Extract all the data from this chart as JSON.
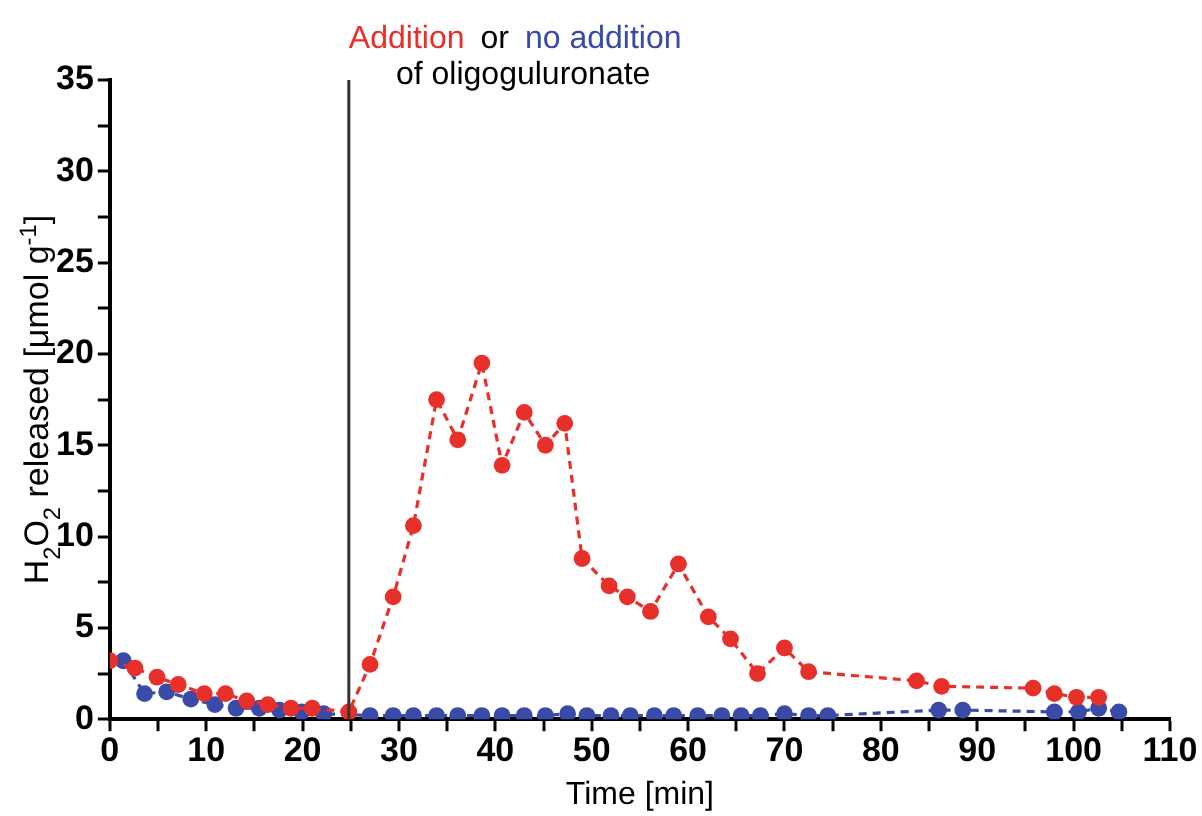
{
  "chart_data": {
    "type": "line",
    "xlabel": "Time [min]",
    "ylabel": "H$_{2}$O$_{2}$ released [μmol g$^{-1}$]",
    "xlim": [
      0,
      110
    ],
    "ylim": [
      0,
      35
    ],
    "xticks": [
      0,
      {
        "value": 5,
        "label": null
      },
      10,
      {
        "value": 15,
        "label": null
      },
      20,
      {
        "value": 25,
        "label": null
      },
      30,
      {
        "value": 35,
        "label": null
      },
      40,
      {
        "value": 45,
        "label": null
      },
      50,
      {
        "value": 55,
        "label": null
      },
      60,
      {
        "value": 65,
        "label": null
      },
      70,
      {
        "value": 75,
        "label": null
      },
      80,
      {
        "value": 85,
        "label": null
      },
      90,
      {
        "value": 95,
        "label": null
      },
      100,
      {
        "value": 105,
        "label": null
      },
      110
    ],
    "yticks": [
      0,
      {
        "value": 2.5,
        "label": null
      },
      5,
      {
        "value": 7.5,
        "label": null
      },
      10,
      {
        "value": 12.5,
        "label": null
      },
      15,
      {
        "value": 17.5,
        "label": null
      },
      20,
      {
        "value": 22.5,
        "label": null
      },
      25,
      {
        "value": 27.5,
        "label": null
      },
      30,
      {
        "value": 32.5,
        "label": null
      },
      35
    ],
    "grid": false,
    "legend": "top",
    "marker": "circle",
    "line_style": "dashed",
    "ref_lines": [
      {
        "axis": "x",
        "value": 24.8,
        "color": "#333333"
      }
    ],
    "annotations": [
      "or",
      "of oligoguluronate"
    ],
    "series": [
      {
        "name": "Addition",
        "color": "#e8302a",
        "x": [
          0,
          2.6,
          4.9,
          7.1,
          9.8,
          12,
          14.2,
          16.4,
          18.8,
          21,
          24.8,
          27,
          29.4,
          31.5,
          33.9,
          36.1,
          38.6,
          40.7,
          43,
          45.2,
          47.2,
          49,
          51.8,
          53.7,
          56.1,
          59,
          62.1,
          64.4,
          67.2,
          70,
          72.5,
          83.7,
          86.3,
          95.8,
          98,
          100.3,
          102.6
        ],
        "values": [
          3.2,
          2.8,
          2.3,
          1.9,
          1.4,
          1.4,
          1,
          0.8,
          0.6,
          0.6,
          0.4,
          3,
          6.7,
          10.6,
          17.5,
          15.3,
          19.5,
          13.9,
          16.8,
          15,
          16.2,
          8.8,
          7.3,
          6.7,
          5.9,
          8.5,
          5.6,
          4.4,
          2.5,
          3.9,
          2.6,
          2.1,
          1.8,
          1.7,
          1.4,
          1.2,
          1.2
        ]
      },
      {
        "name": "no addition",
        "color": "#3a4aa8",
        "x": [
          1.4,
          3.6,
          5.9,
          8.4,
          10.9,
          13.1,
          15.5,
          17.6,
          19.9,
          22.2,
          24.8,
          27,
          29.4,
          31.5,
          33.9,
          36.1,
          38.6,
          40.7,
          43,
          45.2,
          47.5,
          49.5,
          52,
          54,
          56.5,
          58.5,
          61,
          63.5,
          65.5,
          67.5,
          70,
          72.5,
          74.5,
          86,
          88.5,
          98,
          100.5,
          102.6,
          104.7
        ],
        "values": [
          3.2,
          1.4,
          1.5,
          1.1,
          0.8,
          0.6,
          0.6,
          0.5,
          0.4,
          0.3,
          null,
          0.2,
          0.2,
          0.2,
          0.2,
          0.2,
          0.2,
          0.2,
          0.2,
          0.2,
          0.3,
          0.2,
          0.2,
          0.2,
          0.2,
          0.2,
          0.2,
          0.2,
          0.2,
          0.2,
          0.3,
          0.2,
          0.2,
          0.5,
          0.5,
          0.4,
          0.4,
          0.6,
          0.4
        ]
      }
    ]
  }
}
